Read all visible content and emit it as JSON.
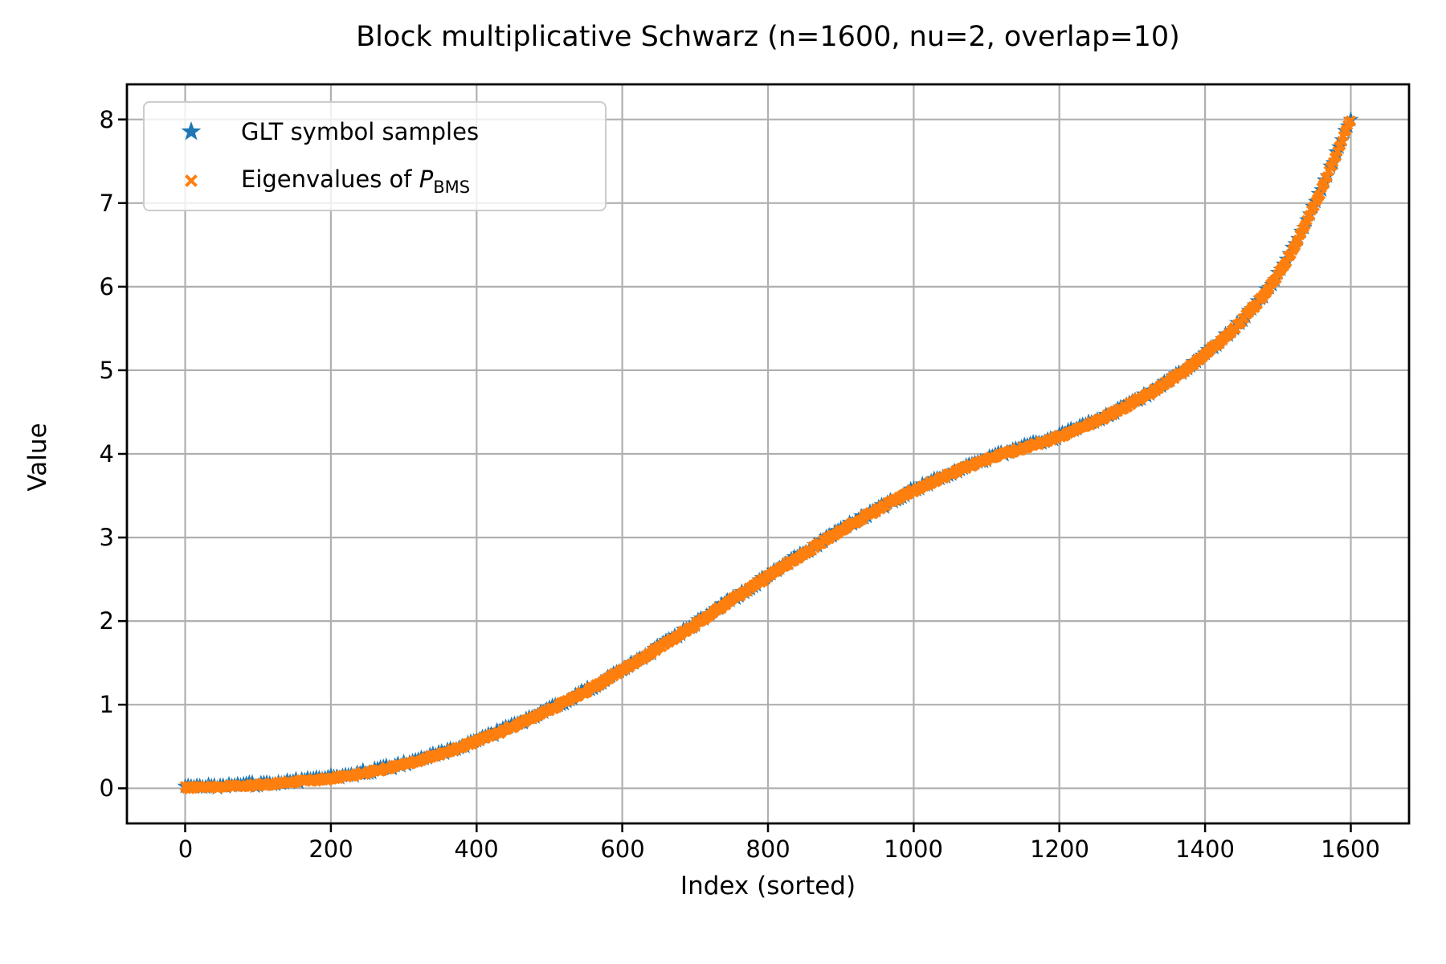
{
  "figure": {
    "title": "Block multiplicative Schwarz (n=1600, nu=2, overlap=10)",
    "xlabel": "Index (sorted)",
    "ylabel": "Value",
    "background": "#ffffff",
    "text_color": "#000000",
    "grid_color": "#b0b0b0",
    "spine_color": "#000000"
  },
  "legend": {
    "position": "upper left",
    "entries": [
      {
        "label": "GLT symbol samples",
        "marker": "star-icon",
        "color": "#1f77b4"
      },
      {
        "label_prefix": "Eigenvalues of ",
        "label_var": "P",
        "label_sub": "BMS",
        "marker": "x-icon",
        "color": "#ff7f0e"
      }
    ]
  },
  "chart_data": {
    "type": "scatter",
    "title": "Block multiplicative Schwarz (n=1600, nu=2, overlap=10)",
    "xlabel": "Index (sorted)",
    "ylabel": "Value",
    "xlim": [
      -80,
      1680
    ],
    "ylim": [
      -0.42,
      8.42
    ],
    "xticks": [
      0,
      200,
      400,
      600,
      800,
      1000,
      1200,
      1400,
      1600
    ],
    "yticks": [
      0,
      1,
      2,
      3,
      4,
      5,
      6,
      7,
      8
    ],
    "grid": true,
    "legend_position": "upper left",
    "series": [
      {
        "name": "GLT symbol samples",
        "marker": "star",
        "color": "#1f77b4",
        "n_points": 1600,
        "values_from": "profile",
        "value_offset": 0.0
      },
      {
        "name": "Eigenvalues of P_BMS",
        "marker": "x",
        "color": "#ff7f0e",
        "n_points": 1600,
        "values_from": "profile",
        "value_offset": -0.01
      }
    ],
    "profile": [
      [
        0,
        0.02
      ],
      [
        50,
        0.03
      ],
      [
        100,
        0.05
      ],
      [
        150,
        0.085
      ],
      [
        200,
        0.13
      ],
      [
        250,
        0.2
      ],
      [
        300,
        0.295
      ],
      [
        350,
        0.42
      ],
      [
        400,
        0.57
      ],
      [
        450,
        0.75
      ],
      [
        500,
        0.95
      ],
      [
        550,
        1.17
      ],
      [
        600,
        1.42
      ],
      [
        650,
        1.69
      ],
      [
        700,
        1.97
      ],
      [
        750,
        2.26
      ],
      [
        800,
        2.54
      ],
      [
        850,
        2.82
      ],
      [
        900,
        3.09
      ],
      [
        950,
        3.34
      ],
      [
        1000,
        3.57
      ],
      [
        1050,
        3.77
      ],
      [
        1100,
        3.94
      ],
      [
        1150,
        4.08
      ],
      [
        1200,
        4.22
      ],
      [
        1250,
        4.4
      ],
      [
        1300,
        4.62
      ],
      [
        1350,
        4.88
      ],
      [
        1400,
        5.2
      ],
      [
        1450,
        5.6
      ],
      [
        1500,
        6.15
      ],
      [
        1550,
        6.98
      ],
      [
        1600,
        8.01
      ]
    ]
  }
}
